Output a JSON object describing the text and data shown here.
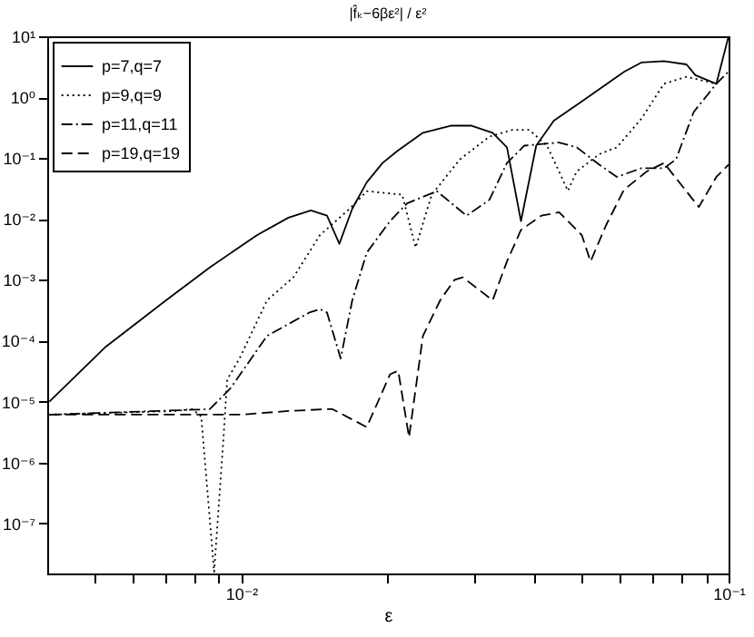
{
  "chart_data": {
    "type": "line",
    "title": "|f̂ₖ−6βε²| / ε²",
    "xlabel": "ε",
    "log": "xy",
    "legend": "top left",
    "xlim": [
      0.004,
      0.1
    ],
    "ylim": [
      1.5e-08,
      10
    ],
    "xticks": [
      {
        "value": 0.005,
        "label": null
      },
      {
        "value": 0.006,
        "label": null
      },
      {
        "value": 0.007,
        "label": null
      },
      {
        "value": 0.008,
        "label": null
      },
      {
        "value": 0.009,
        "label": null
      },
      {
        "value": 0.01,
        "label": "10⁻²"
      },
      {
        "value": 0.02,
        "label": null
      },
      {
        "value": 0.03,
        "label": null
      },
      {
        "value": 0.04,
        "label": null
      },
      {
        "value": 0.05,
        "label": null
      },
      {
        "value": 0.06,
        "label": null
      },
      {
        "value": 0.07,
        "label": null
      },
      {
        "value": 0.08,
        "label": null
      },
      {
        "value": 0.09,
        "label": null
      },
      {
        "value": 0.1,
        "label": "10⁻¹"
      }
    ],
    "yticks": [
      {
        "value": 1e-07,
        "label": "10⁻⁷"
      },
      {
        "value": 1e-06,
        "label": "10⁻⁶"
      },
      {
        "value": 1e-05,
        "label": "10⁻⁵"
      },
      {
        "value": 0.0001,
        "label": "10⁻⁴"
      },
      {
        "value": 0.001,
        "label": "10⁻³"
      },
      {
        "value": 0.01,
        "label": "10⁻²"
      },
      {
        "value": 0.1,
        "label": "10⁻¹"
      },
      {
        "value": 1,
        "label": "10⁰"
      },
      {
        "value": 10,
        "label": "10¹"
      }
    ],
    "series": [
      {
        "name": "p=7,q=7",
        "color": "#000000",
        "line_style": "solid",
        "x": [
          0.00404,
          0.00525,
          0.00701,
          0.00862,
          0.01077,
          0.0125,
          0.0139,
          0.015,
          0.0159,
          0.0169,
          0.0181,
          0.0195,
          0.0209,
          0.0236,
          0.0269,
          0.0297,
          0.0328,
          0.0351,
          0.0375,
          0.0403,
          0.0438,
          0.05,
          0.061,
          0.0662,
          0.0737,
          0.082,
          0.0855,
          0.0944,
          0.1
        ],
        "values": [
          1e-05,
          7.7e-05,
          0.00046,
          0.0016,
          0.0054,
          0.0105,
          0.0138,
          0.0113,
          0.0039,
          0.0147,
          0.04,
          0.083,
          0.13,
          0.26,
          0.34,
          0.34,
          0.26,
          0.15,
          0.0092,
          0.16,
          0.41,
          0.85,
          2.6,
          3.7,
          3.9,
          3.45,
          2.3,
          1.66,
          10
        ]
      },
      {
        "name": "p=9,q=9",
        "color": "#000000",
        "line_style": "dotted",
        "x": [
          0.00404,
          0.00731,
          0.00794,
          0.00828,
          0.0088,
          0.0092,
          0.00936,
          0.00992,
          0.0113,
          0.0128,
          0.0145,
          0.0167,
          0.0181,
          0.0214,
          0.0228,
          0.0246,
          0.0281,
          0.0323,
          0.036,
          0.039,
          0.0424,
          0.0449,
          0.0468,
          0.0488,
          0.0543,
          0.059,
          0.0662,
          0.0737,
          0.082,
          0.0944
        ],
        "values": [
          6.1e-06,
          7e-06,
          7.5e-06,
          5.7e-06,
          1.6e-08,
          2.6e-06,
          2.3e-05,
          5.1e-05,
          0.00046,
          0.0011,
          0.0054,
          0.0147,
          0.0286,
          0.025,
          0.0034,
          0.025,
          0.095,
          0.225,
          0.29,
          0.29,
          0.16,
          0.06,
          0.029,
          0.06,
          0.116,
          0.15,
          0.44,
          1.66,
          2.16,
          1.66
        ]
      },
      {
        "name": "p=11,q=11",
        "color": "#000000",
        "line_style": "dashdot",
        "x": [
          0.00404,
          0.00862,
          0.00951,
          0.0113,
          0.0138,
          0.0145,
          0.015,
          0.016,
          0.0169,
          0.0181,
          0.0202,
          0.0219,
          0.0252,
          0.029,
          0.0323,
          0.0351,
          0.0381,
          0.0449,
          0.0488,
          0.0543,
          0.059,
          0.0662,
          0.0737,
          0.078,
          0.0848,
          0.0944,
          0.1
        ],
        "values": [
          6.1e-06,
          7.5e-06,
          1.66e-05,
          0.00012,
          0.00029,
          0.00033,
          0.00029,
          5.1e-05,
          0.00046,
          0.0028,
          0.0092,
          0.018,
          0.0286,
          0.0113,
          0.0205,
          0.083,
          0.16,
          0.18,
          0.15,
          0.078,
          0.049,
          0.068,
          0.068,
          0.095,
          0.57,
          1.66,
          2.64
        ]
      },
      {
        "name": "p=19,q=19",
        "color": "#000000",
        "line_style": "dashed",
        "x": [
          0.00404,
          0.01,
          0.0125,
          0.015,
          0.0154,
          0.0181,
          0.0202,
          0.021,
          0.0221,
          0.0236,
          0.0256,
          0.0274,
          0.0285,
          0.0328,
          0.0351,
          0.0375,
          0.0413,
          0.0449,
          0.05,
          0.0521,
          0.0561,
          0.061,
          0.0679,
          0.0737,
          0.0869,
          0.0944,
          0.1
        ],
        "values": [
          6.1e-06,
          6.1e-06,
          7e-06,
          7.5e-06,
          7.5e-06,
          3.8e-06,
          2.8e-05,
          3.2e-05,
          2.6e-06,
          0.00012,
          0.00046,
          0.001,
          0.0011,
          0.00046,
          0.002,
          0.0066,
          0.0113,
          0.0129,
          0.0054,
          0.002,
          0.008,
          0.03,
          0.06,
          0.083,
          0.0157,
          0.049,
          0.078
        ]
      }
    ]
  }
}
